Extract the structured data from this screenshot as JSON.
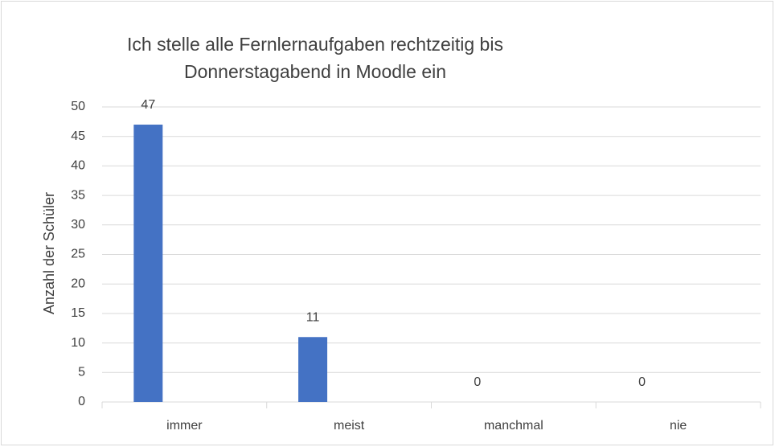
{
  "chart_data": {
    "type": "bar",
    "title": "Ich stelle alle Fernlernaufgaben rechtzeitig bis Donnerstagabend in Moodle ein",
    "y_label": "Anzahl der Schüler",
    "categories": [
      "immer",
      "meist",
      "manchmal",
      "nie"
    ],
    "values": [
      47,
      11,
      0,
      0
    ],
    "color": "#4472c4",
    "ylim": [
      0,
      50
    ],
    "yticks": [
      0,
      5,
      10,
      15,
      20,
      25,
      30,
      35,
      40,
      45,
      50
    ],
    "grid": true,
    "data_labels": true
  }
}
